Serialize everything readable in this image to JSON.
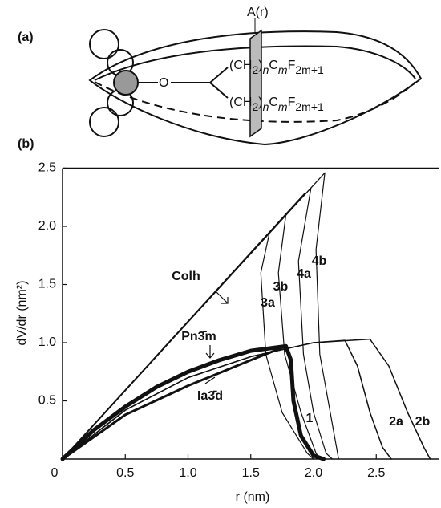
{
  "diagram": {
    "panel_a": "(a)",
    "panel_b": "(b)",
    "area_label": "A(r)",
    "oxygen": "O",
    "chain_labels": [
      [
        "(CH",
        "2",
        ")",
        "n",
        "C",
        "m",
        "F",
        "2m+1"
      ],
      [
        "(CH",
        "2",
        ")",
        "n",
        "C",
        "m",
        "F",
        "2m+1"
      ]
    ]
  },
  "chart_data": {
    "type": "line",
    "x_label": "r (nm)",
    "y_label": "dV/dr (nm²)",
    "xlim": [
      0,
      3.0
    ],
    "ylim": [
      0,
      2.5
    ],
    "xticks": [
      0,
      0.5,
      {
        "value": 1,
        "label": "1.0"
      },
      1.5,
      {
        "value": 2,
        "label": "2.0"
      },
      2.5
    ],
    "yticks": [
      0.5,
      {
        "value": 1,
        "label": "1.0"
      },
      1.5,
      {
        "value": 2,
        "label": "2.0"
      },
      2.5
    ],
    "series": [
      {
        "name": "Colh",
        "color": "#111111",
        "linewidth": 2,
        "x": [
          0,
          1.93
        ],
        "values": [
          0,
          2.28
        ]
      },
      {
        "name": "3a",
        "color": "#111111",
        "linewidth": 1.2,
        "x": [
          0,
          1.65,
          1.58,
          1.62,
          1.75,
          1.95,
          2.0
        ],
        "values": [
          0,
          1.95,
          1.6,
          0.9,
          0.4,
          0.05,
          0
        ]
      },
      {
        "name": "3b",
        "color": "#111111",
        "linewidth": 1.2,
        "x": [
          0,
          1.78,
          1.72,
          1.77,
          1.9,
          2.02,
          2.05
        ],
        "values": [
          0,
          2.1,
          1.6,
          0.9,
          0.4,
          0.05,
          0
        ]
      },
      {
        "name": "4a",
        "color": "#111111",
        "linewidth": 1.2,
        "x": [
          0,
          1.98,
          1.88,
          1.92,
          2.0,
          2.1,
          2.15
        ],
        "values": [
          0,
          2.33,
          1.7,
          0.9,
          0.4,
          0.05,
          0
        ]
      },
      {
        "name": "4b",
        "color": "#111111",
        "linewidth": 1.2,
        "x": [
          0,
          2.09,
          2.02,
          2.05,
          2.15,
          2.2
        ],
        "values": [
          0,
          2.46,
          1.8,
          0.9,
          0.3,
          0
        ]
      },
      {
        "name": "Pn3̄m",
        "color": "#111111",
        "linewidth": 5,
        "x": [
          0,
          0.25,
          0.5,
          0.75,
          1.0,
          1.25,
          1.5,
          1.78
        ],
        "values": [
          0,
          0.25,
          0.45,
          0.62,
          0.75,
          0.85,
          0.93,
          0.97
        ]
      },
      {
        "name": "Ia3̄d",
        "color": "#111111",
        "linewidth": 3,
        "x": [
          0,
          0.5,
          1.0,
          1.5,
          1.78
        ],
        "values": [
          0,
          0.38,
          0.63,
          0.85,
          0.97
        ]
      },
      {
        "name": "1",
        "color": "#111111",
        "linewidth": 5,
        "x": [
          1.78,
          1.82,
          1.84,
          1.9,
          2.0,
          2.08
        ],
        "values": [
          0.97,
          0.85,
          0.5,
          0.2,
          0.03,
          0
        ]
      },
      {
        "name": "2a",
        "color": "#111111",
        "linewidth": 1.5,
        "x": [
          0,
          0.5,
          1.0,
          1.5,
          2.0,
          2.25,
          2.35,
          2.45,
          2.55,
          2.62
        ],
        "values": [
          0,
          0.42,
          0.7,
          0.88,
          1.0,
          1.02,
          0.8,
          0.4,
          0.1,
          0
        ]
      },
      {
        "name": "2b",
        "color": "#111111",
        "linewidth": 1.5,
        "x": [
          0,
          0.5,
          1.0,
          1.5,
          2.0,
          2.45,
          2.6,
          2.75,
          2.88,
          2.93
        ],
        "values": [
          0,
          0.42,
          0.7,
          0.88,
          1.0,
          1.03,
          0.8,
          0.4,
          0.1,
          0
        ]
      }
    ]
  }
}
